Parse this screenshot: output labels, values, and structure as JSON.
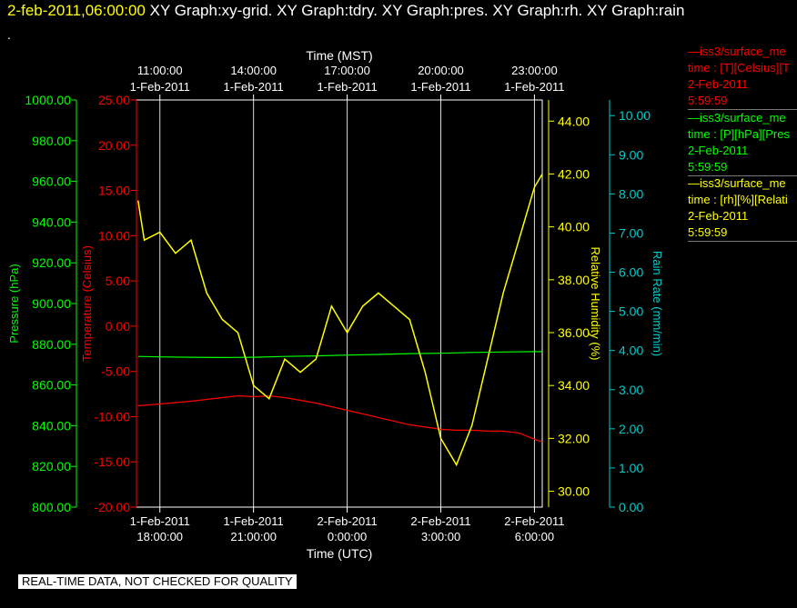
{
  "header": {
    "date": "2-feb-2011,06:00:00",
    "titles": [
      "XY Graph:xy-grid.",
      "XY Graph:tdry.",
      "XY Graph:pres.",
      "XY Graph:rh.",
      "XY Graph:rain"
    ],
    "dot": "."
  },
  "banner": "REAL-TIME DATA, NOT CHECKED FOR QUALITY",
  "legend": [
    {
      "color": "#ff0000",
      "lines": [
        "—iss3/surface_me",
        "time : [T][Celsius][T",
        "2-Feb-2011",
        "5:59:59"
      ]
    },
    {
      "color": "#00ff00",
      "lines": [
        "—iss3/surface_me",
        "time : [P][hPa][Pres",
        "2-Feb-2011",
        "5:59:59"
      ]
    },
    {
      "color": "#ffff00",
      "lines": [
        "—iss3/surface_me",
        "time : [rh][%][Relati",
        "2-Feb-2011",
        "5:59:59"
      ]
    }
  ],
  "colors": {
    "temperature": "#ff0000",
    "pressure": "#00ff00",
    "rh": "#ffff00",
    "rain": "#00cccc",
    "axes": "#ffffff"
  },
  "chart_data": {
    "type": "line",
    "x_top_label": "Time (MST)",
    "x_bottom_label": "Time (UTC)",
    "x_range_hours_utc": [
      17.25,
      30.25
    ],
    "top_ticks": [
      {
        "t": 18,
        "l1": "11:00:00",
        "l2": "1-Feb-2011"
      },
      {
        "t": 21,
        "l1": "14:00:00",
        "l2": "1-Feb-2011"
      },
      {
        "t": 24,
        "l1": "17:00:00",
        "l2": "1-Feb-2011"
      },
      {
        "t": 27,
        "l1": "20:00:00",
        "l2": "1-Feb-2011"
      },
      {
        "t": 30,
        "l1": "23:00:00",
        "l2": "1-Feb-2011"
      }
    ],
    "bottom_ticks": [
      {
        "t": 18,
        "l1": "1-Feb-2011",
        "l2": "18:00:00"
      },
      {
        "t": 21,
        "l1": "1-Feb-2011",
        "l2": "21:00:00"
      },
      {
        "t": 24,
        "l1": "2-Feb-2011",
        "l2": "0:00:00"
      },
      {
        "t": 27,
        "l1": "2-Feb-2011",
        "l2": "3:00:00"
      },
      {
        "t": 30,
        "l1": "2-Feb-2011",
        "l2": "6:00:00"
      }
    ],
    "axes": {
      "pressure": {
        "label": "Pressure (hPa)",
        "range": [
          800,
          1000
        ],
        "ticks": [
          "800.00",
          "820.00",
          "840.00",
          "860.00",
          "880.00",
          "900.00",
          "920.00",
          "940.00",
          "960.00",
          "980.00",
          "1000.00"
        ]
      },
      "temperature": {
        "label": "Temperature (Celsius)",
        "range": [
          -20,
          25
        ],
        "ticks": [
          "-20.00",
          "-15.00",
          "-10.00",
          "-5.00",
          "0.00",
          "5.00",
          "10.00",
          "15.00",
          "20.00",
          "25.00"
        ]
      },
      "rh": {
        "label": "Relative Humidity (%)",
        "range": [
          29.4,
          44.8
        ],
        "ticks": [
          "30.00",
          "32.00",
          "34.00",
          "36.00",
          "38.00",
          "40.00",
          "42.00",
          "44.00"
        ]
      },
      "rain": {
        "label": "Rain Rate (mm/min)",
        "range": [
          0,
          10.4
        ],
        "ticks": [
          "0.00",
          "1.00",
          "2.00",
          "3.00",
          "4.00",
          "5.00",
          "6.00",
          "7.00",
          "8.00",
          "9.00",
          "10.00"
        ]
      }
    },
    "series": [
      {
        "name": "Temperature",
        "axis": "temperature",
        "x": [
          17.3,
          18,
          19,
          20,
          20.5,
          21,
          21.5,
          22,
          23,
          24,
          25,
          26,
          27,
          27.5,
          28,
          28.5,
          29,
          29.5,
          30,
          30.25
        ],
        "y": [
          -8.8,
          -8.6,
          -8.3,
          -7.9,
          -7.7,
          -7.8,
          -7.7,
          -7.9,
          -8.5,
          -9.3,
          -10.1,
          -10.9,
          -11.4,
          -11.5,
          -11.5,
          -11.6,
          -11.6,
          -11.8,
          -12.5,
          -12.8
        ]
      },
      {
        "name": "Pressure",
        "axis": "pressure",
        "x": [
          17.3,
          18,
          19,
          20,
          21,
          22,
          23,
          24,
          25,
          26,
          27,
          28,
          29,
          30,
          30.25
        ],
        "y": [
          874.0,
          873.8,
          873.6,
          873.5,
          873.6,
          874.0,
          874.3,
          874.7,
          875.0,
          875.4,
          875.6,
          876.0,
          876.2,
          876.4,
          876.4
        ]
      },
      {
        "name": "Relative Humidity",
        "axis": "rh",
        "x": [
          17.3,
          17.5,
          18,
          18.5,
          19,
          19.5,
          20,
          20.5,
          21,
          21.5,
          22,
          22.5,
          23,
          23.5,
          24,
          24.5,
          25,
          25.5,
          26,
          26.5,
          27,
          27.5,
          28,
          28.5,
          29,
          29.5,
          30,
          30.25
        ],
        "y": [
          41.0,
          39.5,
          39.8,
          39.0,
          39.5,
          37.5,
          36.5,
          36.0,
          34.0,
          33.5,
          35.0,
          34.5,
          35.0,
          37.0,
          36.0,
          37.0,
          37.5,
          37.0,
          36.5,
          34.5,
          32.0,
          31.0,
          32.5,
          35.0,
          37.5,
          39.5,
          41.5,
          42.0
        ]
      }
    ]
  }
}
